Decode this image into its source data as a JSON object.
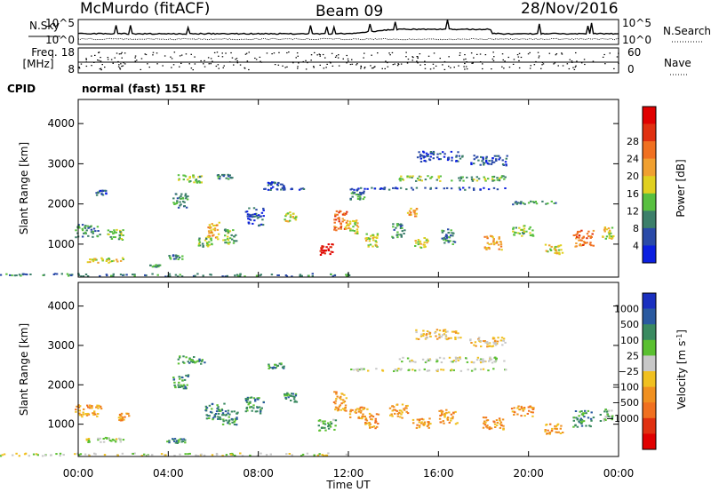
{
  "header": {
    "station": "McMurdo (fitACF)",
    "beam": "Beam 09",
    "date": "28/Nov/2016"
  },
  "top_panels": {
    "nsky_label": "N.Sky",
    "nsearch_label": "N.Search",
    "freq_label": "Freq.",
    "freq_unit": "[MHz]",
    "nave_label": "Nave",
    "cpid_label": "CPID",
    "cpid_text": "normal (fast) 151 RF",
    "noise_ticks": [
      "10^5",
      "10^0"
    ],
    "freq_ticks": [
      "18",
      "8"
    ],
    "nave_ticks": [
      "60",
      "0"
    ]
  },
  "chart_data": [
    {
      "type": "heatmap",
      "name": "power",
      "ylabel": "Slant Range [km]",
      "xlabel": "",
      "ylim": [
        180,
        4600
      ],
      "xlim": [
        0,
        24
      ],
      "y_ticks": [
        1000,
        2000,
        3000,
        4000
      ],
      "x_ticks": [
        0,
        4,
        8,
        12,
        16,
        20,
        24
      ],
      "colorbar": {
        "label": "Power [dB]",
        "ticks": [
          4,
          8,
          12,
          16,
          20,
          24,
          28
        ],
        "colors": [
          "#0b1fe0",
          "#2a4aa8",
          "#3c7f6a",
          "#58c040",
          "#e0d020",
          "#f0a030",
          "#f07020",
          "#e03010",
          "#e00000"
        ]
      },
      "patches": [
        {
          "t": 0.4,
          "r": 1350,
          "w": 1.1,
          "h": 320,
          "c": 2
        },
        {
          "t": 1.6,
          "r": 1250,
          "w": 0.8,
          "h": 260,
          "c": 3
        },
        {
          "t": 1.2,
          "r": 620,
          "w": 1.8,
          "h": 120,
          "c": 4
        },
        {
          "t": 0.3,
          "r": 250,
          "w": 23.5,
          "h": 70,
          "c": 2
        },
        {
          "t": 1.0,
          "r": 2300,
          "w": 0.5,
          "h": 120,
          "c": 1
        },
        {
          "t": 4.3,
          "r": 700,
          "w": 0.6,
          "h": 140,
          "c": 2
        },
        {
          "t": 4.5,
          "r": 2100,
          "w": 0.7,
          "h": 350,
          "c": 2
        },
        {
          "t": 5.0,
          "r": 2650,
          "w": 1.2,
          "h": 200,
          "c": 3
        },
        {
          "t": 6.0,
          "r": 1350,
          "w": 0.6,
          "h": 420,
          "c": 5
        },
        {
          "t": 5.6,
          "r": 1050,
          "w": 0.6,
          "h": 260,
          "c": 3
        },
        {
          "t": 6.7,
          "r": 1200,
          "w": 0.6,
          "h": 380,
          "c": 3
        },
        {
          "t": 6.5,
          "r": 2700,
          "w": 0.7,
          "h": 120,
          "c": 2
        },
        {
          "t": 7.8,
          "r": 1700,
          "w": 0.8,
          "h": 450,
          "c": 1
        },
        {
          "t": 8.7,
          "r": 2500,
          "w": 0.8,
          "h": 130,
          "c": 1
        },
        {
          "t": 9.4,
          "r": 1700,
          "w": 0.6,
          "h": 230,
          "c": 4
        },
        {
          "t": 9.1,
          "r": 2400,
          "w": 1.8,
          "h": 60,
          "c": 1
        },
        {
          "t": 11.0,
          "r": 880,
          "w": 0.6,
          "h": 280,
          "c": 8
        },
        {
          "t": 11.6,
          "r": 1600,
          "w": 0.6,
          "h": 500,
          "c": 6
        },
        {
          "t": 12.1,
          "r": 1450,
          "w": 0.7,
          "h": 350,
          "c": 4
        },
        {
          "t": 12.4,
          "r": 2250,
          "w": 0.7,
          "h": 240,
          "c": 2
        },
        {
          "t": 13.0,
          "r": 1100,
          "w": 0.6,
          "h": 380,
          "c": 4
        },
        {
          "t": 14.2,
          "r": 1350,
          "w": 0.6,
          "h": 350,
          "c": 2
        },
        {
          "t": 14.8,
          "r": 1800,
          "w": 0.4,
          "h": 220,
          "c": 5
        },
        {
          "t": 15.2,
          "r": 1050,
          "w": 0.6,
          "h": 250,
          "c": 4
        },
        {
          "t": 16.4,
          "r": 1200,
          "w": 0.6,
          "h": 380,
          "c": 2
        },
        {
          "t": 16.0,
          "r": 3200,
          "w": 2.1,
          "h": 250,
          "c": 1
        },
        {
          "t": 16.6,
          "r": 2650,
          "w": 4.8,
          "h": 140,
          "c": 3
        },
        {
          "t": 15.5,
          "r": 2400,
          "w": 7.0,
          "h": 50,
          "c": 1
        },
        {
          "t": 18.2,
          "r": 3100,
          "w": 1.7,
          "h": 250,
          "c": 1
        },
        {
          "t": 18.4,
          "r": 1050,
          "w": 0.8,
          "h": 350,
          "c": 5
        },
        {
          "t": 19.7,
          "r": 1350,
          "w": 1.0,
          "h": 260,
          "c": 3
        },
        {
          "t": 21.1,
          "r": 900,
          "w": 0.8,
          "h": 260,
          "c": 4
        },
        {
          "t": 22.4,
          "r": 1150,
          "w": 0.9,
          "h": 420,
          "c": 6
        },
        {
          "t": 23.5,
          "r": 1300,
          "w": 0.5,
          "h": 300,
          "c": 4
        },
        {
          "t": 20.2,
          "r": 2050,
          "w": 2.0,
          "h": 80,
          "c": 2
        },
        {
          "t": 3.4,
          "r": 480,
          "w": 0.6,
          "h": 60,
          "c": 2
        }
      ]
    },
    {
      "type": "heatmap",
      "name": "velocity",
      "ylabel": "Slant Range [km]",
      "xlabel": "Time UT",
      "ylim": [
        180,
        4600
      ],
      "xlim": [
        0,
        24
      ],
      "y_ticks": [
        1000,
        2000,
        3000,
        4000
      ],
      "x_ticks": [
        0,
        4,
        8,
        12,
        16,
        20,
        24
      ],
      "x_tick_labels": [
        "00:00",
        "04:00",
        "08:00",
        "12:00",
        "16:00",
        "20:00",
        "00:00"
      ],
      "colorbar": {
        "label": "Velocity [m s",
        "label_sup": "-1",
        "label_end": "]",
        "ticks": [
          "1000",
          "500",
          "100",
          "25",
          "−25",
          "−100",
          "−500",
          "−1000"
        ],
        "colors": [
          "#1a30c0",
          "#2a5aa0",
          "#3a8a60",
          "#5ac030",
          "#c8c8c8",
          "#f0c020",
          "#f09020",
          "#f07020",
          "#e03010",
          "#e00000"
        ]
      },
      "patches": [
        {
          "t": 0.4,
          "r": 1350,
          "w": 1.2,
          "h": 320,
          "c": 6
        },
        {
          "t": 1.2,
          "r": 620,
          "w": 1.8,
          "h": 120,
          "c": 4
        },
        {
          "t": 0.3,
          "r": 250,
          "w": 23.5,
          "h": 70,
          "c": 4
        },
        {
          "t": 4.3,
          "r": 600,
          "w": 0.9,
          "h": 130,
          "c": 2
        },
        {
          "t": 4.5,
          "r": 2100,
          "w": 0.7,
          "h": 350,
          "c": 2
        },
        {
          "t": 5.0,
          "r": 2650,
          "w": 1.2,
          "h": 200,
          "c": 2
        },
        {
          "t": 6.0,
          "r": 1350,
          "w": 0.9,
          "h": 420,
          "c": 2
        },
        {
          "t": 6.7,
          "r": 1200,
          "w": 0.7,
          "h": 380,
          "c": 2
        },
        {
          "t": 7.8,
          "r": 1500,
          "w": 0.8,
          "h": 450,
          "c": 2
        },
        {
          "t": 8.7,
          "r": 2500,
          "w": 0.8,
          "h": 130,
          "c": 2
        },
        {
          "t": 9.4,
          "r": 1700,
          "w": 0.6,
          "h": 230,
          "c": 2
        },
        {
          "t": 11.0,
          "r": 1000,
          "w": 0.8,
          "h": 300,
          "c": 3
        },
        {
          "t": 11.6,
          "r": 1600,
          "w": 0.6,
          "h": 500,
          "c": 6
        },
        {
          "t": 12.4,
          "r": 1300,
          "w": 0.8,
          "h": 300,
          "c": 6
        },
        {
          "t": 13.0,
          "r": 1100,
          "w": 0.6,
          "h": 380,
          "c": 6
        },
        {
          "t": 14.2,
          "r": 1350,
          "w": 0.8,
          "h": 350,
          "c": 6
        },
        {
          "t": 15.2,
          "r": 1050,
          "w": 0.8,
          "h": 250,
          "c": 6
        },
        {
          "t": 16.4,
          "r": 1200,
          "w": 0.8,
          "h": 380,
          "c": 6
        },
        {
          "t": 16.0,
          "r": 3300,
          "w": 2.1,
          "h": 250,
          "c": 5
        },
        {
          "t": 16.6,
          "r": 2650,
          "w": 4.8,
          "h": 140,
          "c": 4
        },
        {
          "t": 15.5,
          "r": 2400,
          "w": 7.0,
          "h": 50,
          "c": 4
        },
        {
          "t": 18.2,
          "r": 3100,
          "w": 1.7,
          "h": 250,
          "c": 5
        },
        {
          "t": 18.4,
          "r": 1050,
          "w": 0.9,
          "h": 350,
          "c": 6
        },
        {
          "t": 19.7,
          "r": 1350,
          "w": 1.0,
          "h": 260,
          "c": 6
        },
        {
          "t": 21.1,
          "r": 900,
          "w": 0.8,
          "h": 260,
          "c": 6
        },
        {
          "t": 22.4,
          "r": 1150,
          "w": 0.9,
          "h": 420,
          "c": 2
        },
        {
          "t": 23.4,
          "r": 1250,
          "w": 0.6,
          "h": 300,
          "c": 3
        },
        {
          "t": 2.0,
          "r": 1200,
          "w": 0.5,
          "h": 200,
          "c": 6
        }
      ]
    }
  ]
}
